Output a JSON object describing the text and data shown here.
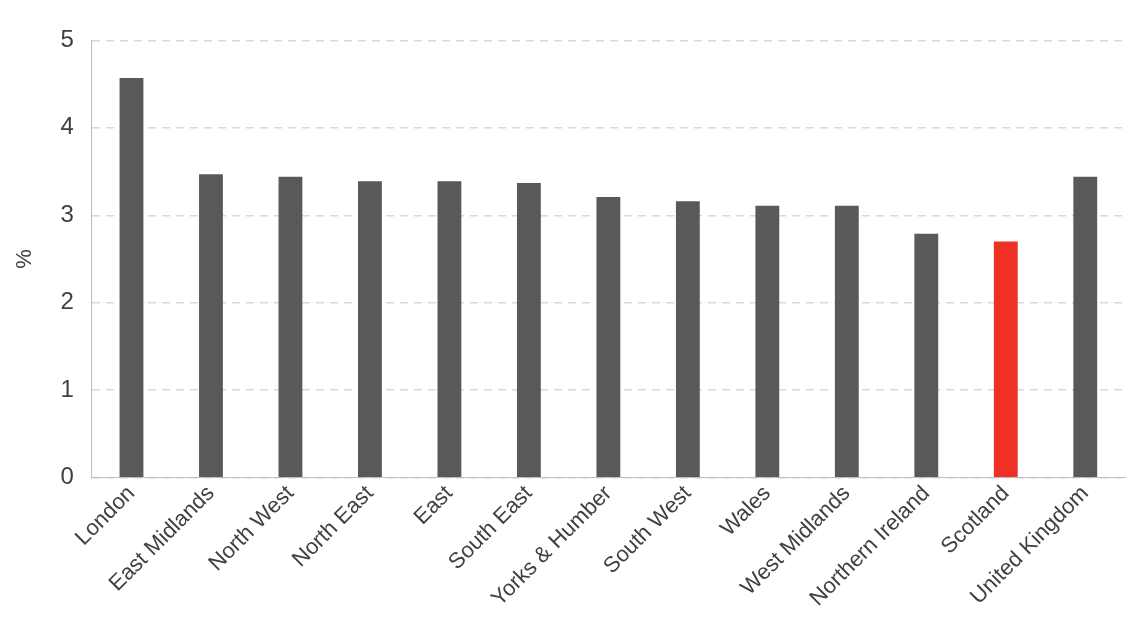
{
  "chart_data": {
    "type": "bar",
    "ylabel": "%",
    "categories": [
      "London",
      "East Midlands",
      "North West",
      "North East",
      "East",
      "South East",
      "Yorks & Humber",
      "South West",
      "Wales",
      "West Midlands",
      "Northern Ireland",
      "Scotland",
      "United Kingdom"
    ],
    "values": [
      4.57,
      3.47,
      3.44,
      3.39,
      3.39,
      3.37,
      3.21,
      3.16,
      3.11,
      3.11,
      2.79,
      2.7,
      3.44
    ],
    "colors": [
      "#595959",
      "#595959",
      "#595959",
      "#595959",
      "#595959",
      "#595959",
      "#595959",
      "#595959",
      "#595959",
      "#595959",
      "#595959",
      "#ee3124",
      "#595959"
    ],
    "ylim": [
      0,
      5
    ],
    "yticks": [
      0,
      1,
      2,
      3,
      4,
      5
    ],
    "grid": "y",
    "legend": false
  }
}
